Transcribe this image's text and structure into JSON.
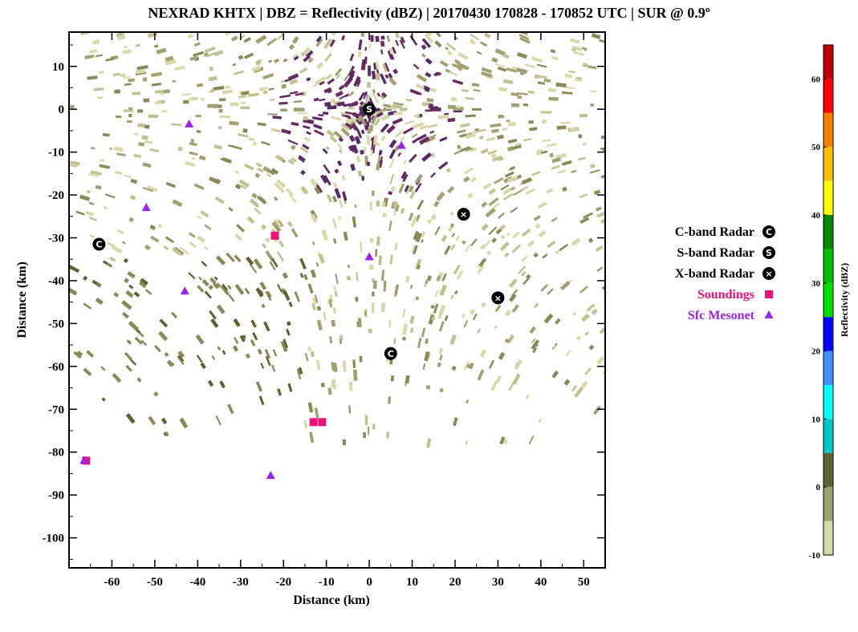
{
  "chart_data": {
    "type": "scatter",
    "title": "NEXRAD KHTX | DBZ = Reflectivity (dBZ) | 20170430 170828 - 170852 UTC | SUR @ 0.9º",
    "xlabel": "Distance (km)",
    "ylabel": "Distance (km)",
    "xlim": [
      -70,
      55
    ],
    "ylim": [
      -107,
      18
    ],
    "xticks": [
      -60,
      -50,
      -40,
      -30,
      -20,
      -10,
      0,
      10,
      20,
      30,
      40,
      50
    ],
    "yticks": [
      10,
      0,
      -10,
      -20,
      -30,
      -40,
      -50,
      -60,
      -70,
      -80,
      -90,
      -100
    ],
    "background": "radar reflectivity field (dBZ), mostly -10 to 5 dBZ",
    "series": [
      {
        "name": "C-band Radar",
        "marker": "C",
        "color": "#000000",
        "points": [
          [
            -63,
            -31.5
          ],
          [
            5,
            -57
          ]
        ]
      },
      {
        "name": "S-band Radar",
        "marker": "S",
        "color": "#000000",
        "points": [
          [
            0,
            0
          ]
        ]
      },
      {
        "name": "X-band Radar",
        "marker": "X",
        "color": "#000000",
        "points": [
          [
            22,
            -24.5
          ],
          [
            30,
            -44
          ]
        ]
      },
      {
        "name": "Soundings",
        "marker": "square",
        "color": "#ee1177",
        "points": [
          [
            -22,
            -29.5
          ],
          [
            -13,
            -73
          ],
          [
            -11,
            -73
          ],
          [
            -66,
            -82
          ]
        ]
      },
      {
        "name": "Sfc Mesonet",
        "marker": "triangle",
        "color": "#9922ee",
        "points": [
          [
            -42,
            -3.5
          ],
          [
            -52,
            -23
          ],
          [
            -43,
            -42.5
          ],
          [
            0,
            -34.5
          ],
          [
            7.5,
            -8.5
          ],
          [
            -23,
            -85.5
          ],
          [
            -66.5,
            -82
          ]
        ]
      }
    ],
    "legend": {
      "placement": "right",
      "items": [
        "C-band Radar",
        "S-band Radar",
        "X-band Radar",
        "Soundings",
        "Sfc Mesonet"
      ],
      "colors": [
        "#000000",
        "#000000",
        "#000000",
        "#ee1177",
        "#9922ee"
      ]
    },
    "colorbar": {
      "label": "Reflectivity (dBZ)",
      "range": [
        -10,
        65
      ],
      "ticks": [
        60,
        50,
        40,
        30,
        20,
        10,
        0,
        -10
      ],
      "bands": [
        {
          "from": -10,
          "to": -5,
          "color": "#d8d8a8"
        },
        {
          "from": -5,
          "to": 0,
          "color": "#a0a070"
        },
        {
          "from": 0,
          "to": 5,
          "color": "#606030"
        },
        {
          "from": 5,
          "to": 10,
          "color": "#00c8c8"
        },
        {
          "from": 10,
          "to": 15,
          "color": "#00ffff"
        },
        {
          "from": 15,
          "to": 20,
          "color": "#4090ff"
        },
        {
          "from": 20,
          "to": 25,
          "color": "#0000ff"
        },
        {
          "from": 25,
          "to": 30,
          "color": "#00e000"
        },
        {
          "from": 30,
          "to": 35,
          "color": "#00c000"
        },
        {
          "from": 35,
          "to": 40,
          "color": "#008800"
        },
        {
          "from": 40,
          "to": 45,
          "color": "#ffff00"
        },
        {
          "from": 45,
          "to": 50,
          "color": "#ffc000"
        },
        {
          "from": 50,
          "to": 55,
          "color": "#ff8000"
        },
        {
          "from": 55,
          "to": 60,
          "color": "#ff0000"
        },
        {
          "from": 60,
          "to": 65,
          "color": "#c00000"
        },
        {
          "from": 65,
          "to": 66,
          "color": "#800000"
        }
      ]
    }
  }
}
